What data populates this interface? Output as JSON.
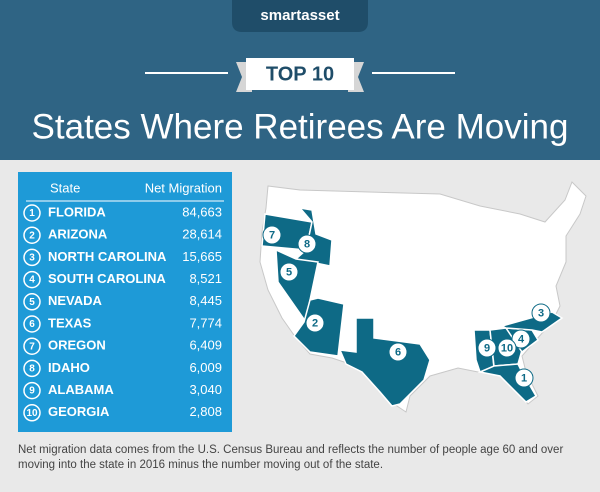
{
  "brand": "smartasset",
  "badge": "TOP 10",
  "title": "States Where Retirees Are Moving",
  "table": {
    "columns": [
      "State",
      "Net Migration"
    ],
    "rows": [
      {
        "rank": 1,
        "state": "FLORIDA",
        "net_migration": "84,663"
      },
      {
        "rank": 2,
        "state": "ARIZONA",
        "net_migration": "28,614"
      },
      {
        "rank": 3,
        "state": "NORTH CAROLINA",
        "net_migration": "15,665"
      },
      {
        "rank": 4,
        "state": "SOUTH CAROLINA",
        "net_migration": "8,521"
      },
      {
        "rank": 5,
        "state": "NEVADA",
        "net_migration": "8,445"
      },
      {
        "rank": 6,
        "state": "TEXAS",
        "net_migration": "7,774"
      },
      {
        "rank": 7,
        "state": "OREGON",
        "net_migration": "6,409"
      },
      {
        "rank": 8,
        "state": "IDAHO",
        "net_migration": "6,009"
      },
      {
        "rank": 9,
        "state": "ALABAMA",
        "net_migration": "3,040"
      },
      {
        "rank": 10,
        "state": "GEORGIA",
        "net_migration": "2,808"
      }
    ]
  },
  "footnote": "Net migration data comes from the U.S. Census Bureau and reflects the number of people age 60 and over moving into the state in 2016 minus the number moving out of the state."
}
